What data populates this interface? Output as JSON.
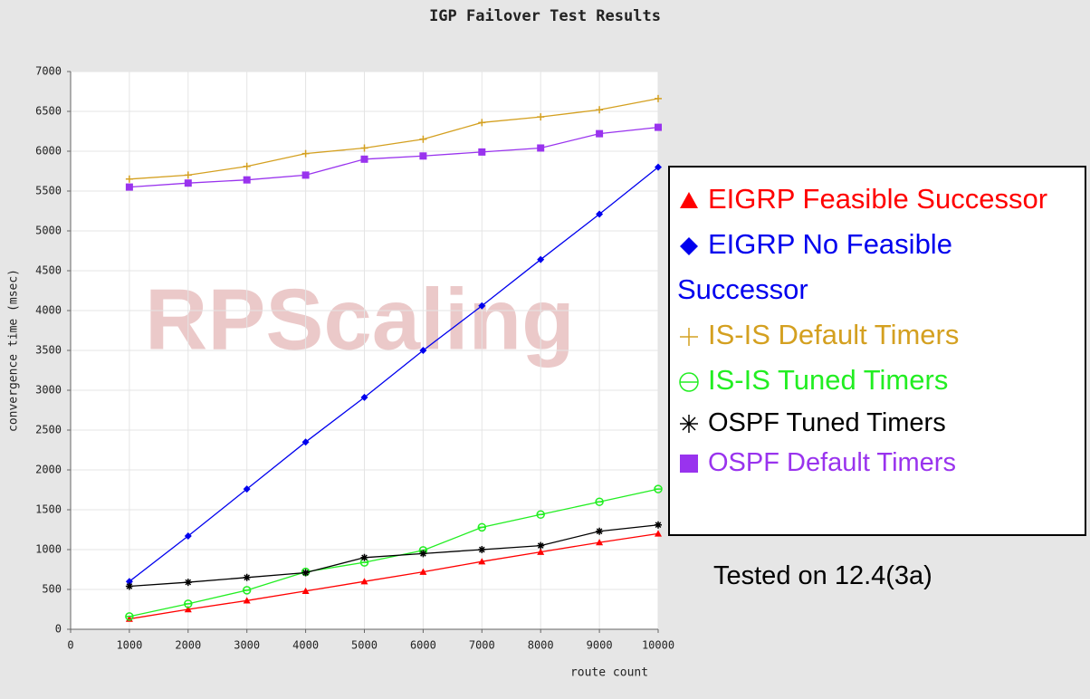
{
  "chart_data": {
    "type": "line",
    "title": "IGP Failover Test Results",
    "xlabel": "route count",
    "ylabel": "convergence time (msec)",
    "watermark": "RPScaling",
    "annotation": "Tested on 12.4(3a)",
    "x": [
      1000,
      2000,
      3000,
      4000,
      5000,
      6000,
      7000,
      8000,
      9000,
      10000
    ],
    "xlim": [
      0,
      10000
    ],
    "xticks": [
      0,
      1000,
      2000,
      3000,
      4000,
      5000,
      6000,
      7000,
      8000,
      9000,
      10000
    ],
    "ylim": [
      0,
      7000
    ],
    "yticks": [
      0,
      500,
      1000,
      1500,
      2000,
      2500,
      3000,
      3500,
      4000,
      4500,
      5000,
      5500,
      6000,
      6500,
      7000
    ],
    "grid": true,
    "legend": "right",
    "series": [
      {
        "name": "EIGRP Feasible Successor",
        "color": "#ff0000",
        "marker": "triangle",
        "values": [
          130,
          250,
          360,
          480,
          600,
          720,
          850,
          970,
          1090,
          1200
        ]
      },
      {
        "name": "EIGRP No Feasible Successor",
        "color": "#0000ee",
        "marker": "diamond",
        "values": [
          600,
          1170,
          1760,
          2350,
          2910,
          3500,
          4060,
          4640,
          5210,
          5800
        ]
      },
      {
        "name": "IS-IS Default Timers",
        "color": "#d4a020",
        "marker": "plus",
        "values": [
          5650,
          5700,
          5810,
          5970,
          6040,
          6150,
          6360,
          6430,
          6520,
          6660
        ]
      },
      {
        "name": "IS-IS Tuned Timers",
        "color": "#22ee22",
        "marker": "circle",
        "values": [
          160,
          320,
          490,
          720,
          840,
          990,
          1280,
          1440,
          1600,
          1760
        ]
      },
      {
        "name": "OSPF Tuned Timers",
        "color": "#000000",
        "marker": "star",
        "values": [
          540,
          590,
          650,
          710,
          900,
          950,
          1000,
          1050,
          1230,
          1310
        ]
      },
      {
        "name": "OSPF Default Timers",
        "color": "#9933ee",
        "marker": "square",
        "values": [
          5550,
          5600,
          5640,
          5700,
          5900,
          5940,
          5990,
          6040,
          6220,
          6300
        ]
      }
    ]
  }
}
